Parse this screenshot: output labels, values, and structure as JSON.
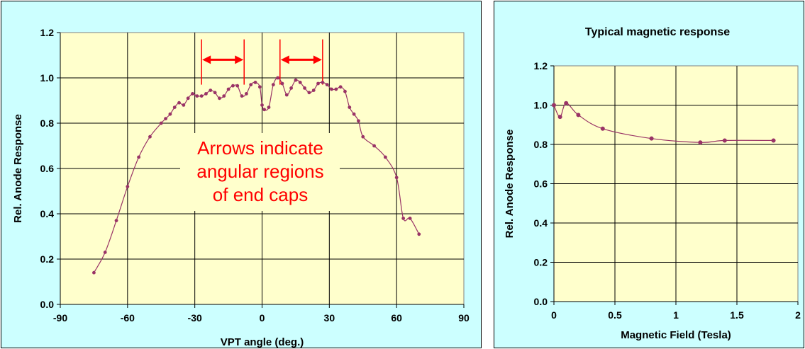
{
  "colors": {
    "panel_bg": "#CCFFFF",
    "plot_bg": "#FFFFCC",
    "series": "#993366",
    "arrow": "#FF0000",
    "annotation": "#FF0000"
  },
  "chart_data": [
    {
      "type": "scatter",
      "title": "",
      "xlabel": "VPT angle (deg.)",
      "ylabel": "Rel. Anode Response",
      "xlim": [
        -90,
        90
      ],
      "ylim": [
        0,
        1.2
      ],
      "xticks": [
        -90,
        -60,
        -30,
        0,
        30,
        60,
        90
      ],
      "xtick_labels": [
        "-90",
        "-60",
        "-30",
        "0",
        "30",
        "60",
        "90"
      ],
      "yticks": [
        0,
        0.2,
        0.4,
        0.6,
        0.8,
        1.0,
        1.2
      ],
      "ytick_labels": [
        "0.0",
        "0.2",
        "0.4",
        "0.6",
        "0.8",
        "1.0",
        "1.2"
      ],
      "grid": true,
      "series": [
        {
          "x": [
            -75,
            -70,
            -65,
            -60,
            -55,
            -50,
            -45,
            -43,
            -41,
            -39,
            -37,
            -35,
            -33,
            -31,
            -29,
            -27,
            -25,
            -23,
            -21,
            -19,
            -17,
            -15,
            -13,
            -11,
            -9,
            -7,
            -5,
            -3,
            -1,
            0,
            1,
            3,
            5,
            7,
            9,
            11,
            13,
            15,
            17,
            19,
            21,
            23,
            25,
            27,
            29,
            31,
            33,
            35,
            37,
            39,
            41,
            43,
            45,
            50,
            55,
            60,
            63,
            66,
            70
          ],
          "y": [
            0.14,
            0.23,
            0.37,
            0.52,
            0.65,
            0.74,
            0.8,
            0.82,
            0.84,
            0.87,
            0.89,
            0.88,
            0.91,
            0.93,
            0.92,
            0.92,
            0.93,
            0.945,
            0.935,
            0.91,
            0.92,
            0.95,
            0.965,
            0.965,
            0.92,
            0.93,
            0.97,
            0.98,
            0.96,
            0.88,
            0.86,
            0.87,
            0.97,
            1.0,
            0.975,
            0.925,
            0.955,
            0.99,
            0.98,
            0.955,
            0.935,
            0.945,
            0.975,
            0.98,
            0.97,
            0.95,
            0.95,
            0.96,
            0.94,
            0.87,
            0.84,
            0.81,
            0.74,
            0.7,
            0.65,
            0.56,
            0.38,
            0.38,
            0.31
          ]
        }
      ],
      "annotations": [
        {
          "lines": [
            "Arrows indicate",
            "angular regions",
            "of end caps"
          ]
        }
      ],
      "arrows": [
        {
          "x_from": -27,
          "x_to": -8,
          "y": 1.08,
          "marker_top": 1.17,
          "marker_bottom": 0.97
        },
        {
          "x_from": 8,
          "x_to": 27,
          "y": 1.08,
          "marker_top": 1.17,
          "marker_bottom": 0.97
        }
      ]
    },
    {
      "type": "line",
      "title": "Typical magnetic response",
      "xlabel": "Magnetic Field (Tesla)",
      "ylabel": "Rel. Anode Response",
      "xlim": [
        0,
        2
      ],
      "ylim": [
        0,
        1.2
      ],
      "xticks": [
        0,
        0.5,
        1,
        1.5,
        2
      ],
      "xtick_labels": [
        "0",
        "0.5",
        "1",
        "1.5",
        "2"
      ],
      "yticks": [
        0,
        0.2,
        0.4,
        0.6,
        0.8,
        1.0,
        1.2
      ],
      "ytick_labels": [
        "0.0",
        "0.2",
        "0.4",
        "0.6",
        "0.8",
        "1.0",
        "1.2"
      ],
      "grid": true,
      "series": [
        {
          "x": [
            0,
            0.05,
            0.1,
            0.2,
            0.4,
            0.8,
            1.2,
            1.4,
            1.8
          ],
          "y": [
            1.0,
            0.94,
            1.01,
            0.95,
            0.88,
            0.83,
            0.81,
            0.82,
            0.82
          ]
        }
      ]
    }
  ]
}
